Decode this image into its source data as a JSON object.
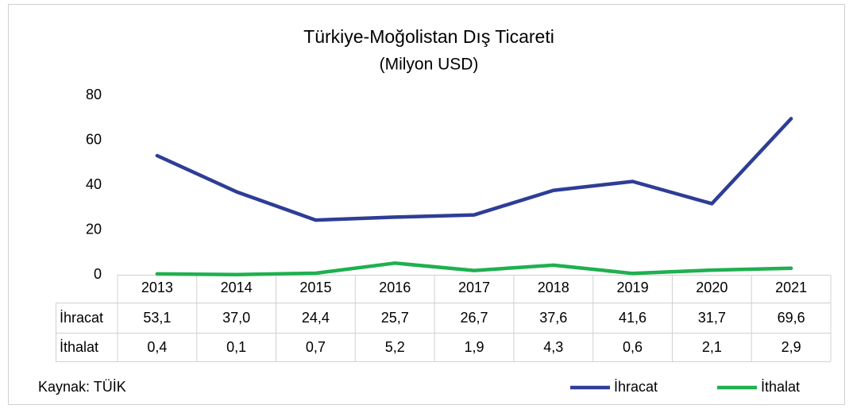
{
  "chart_data": {
    "type": "line",
    "title": "Türkiye-Moğolistan Dış Ticareti",
    "subtitle": "(Milyon USD)",
    "source": "Kaynak: TÜİK",
    "categories": [
      "2013",
      "2014",
      "2015",
      "2016",
      "2017",
      "2018",
      "2019",
      "2020",
      "2021"
    ],
    "series": [
      {
        "name": "İhracat",
        "color": "#2e3d96",
        "values": [
          53.1,
          37.0,
          24.4,
          25.7,
          26.7,
          37.6,
          41.6,
          31.7,
          69.6
        ],
        "value_labels": [
          "53,1",
          "37,0",
          "24,4",
          "25,7",
          "26,7",
          "37,6",
          "41,6",
          "31,7",
          "69,6"
        ]
      },
      {
        "name": "İthalat",
        "color": "#1fb04f",
        "values": [
          0.4,
          0.1,
          0.7,
          5.2,
          1.9,
          4.3,
          0.6,
          2.1,
          2.9
        ],
        "value_labels": [
          "0,4",
          "0,1",
          "0,7",
          "5,2",
          "1,9",
          "4,3",
          "0,6",
          "2,1",
          "2,9"
        ]
      }
    ],
    "ylim": [
      0,
      80
    ],
    "yticks": [
      0,
      20,
      40,
      60,
      80
    ],
    "grid": false,
    "legend": "bottom-right"
  }
}
